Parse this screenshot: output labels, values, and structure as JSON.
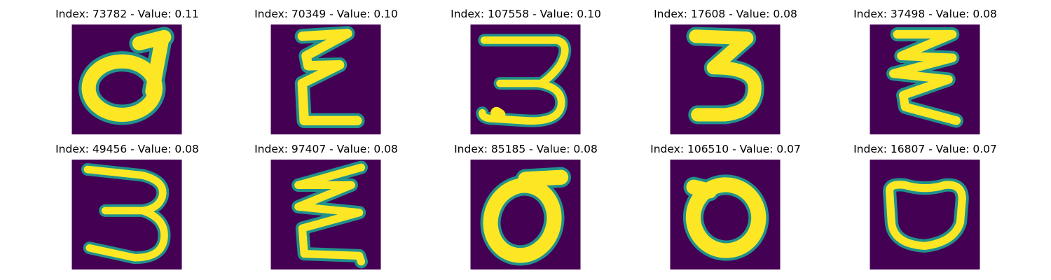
{
  "palette": {
    "background": "#440154",
    "mid_dark": "#3b528b",
    "mid": "#21918c",
    "mid_light": "#5ec962",
    "foreground": "#fde725"
  },
  "panels": [
    {
      "title": "Index: 73782 - Value: 0.11",
      "glyph": "d"
    },
    {
      "title": "Index: 70349 - Value: 0.10",
      "glyph": "E"
    },
    {
      "title": "Index: 107558 - Value: 0.10",
      "glyph": "3"
    },
    {
      "title": "Index: 17608 - Value: 0.08",
      "glyph": "3"
    },
    {
      "title": "Index: 37498 - Value: 0.08",
      "glyph": "E"
    },
    {
      "title": "Index: 49456 - Value: 0.08",
      "glyph": "3"
    },
    {
      "title": "Index: 97407 - Value: 0.08",
      "glyph": "E"
    },
    {
      "title": "Index: 85185 - Value: 0.08",
      "glyph": "0"
    },
    {
      "title": "Index: 106510 - Value: 0.07",
      "glyph": "0"
    },
    {
      "title": "Index: 16807 - Value: 0.07",
      "glyph": "0"
    }
  ]
}
